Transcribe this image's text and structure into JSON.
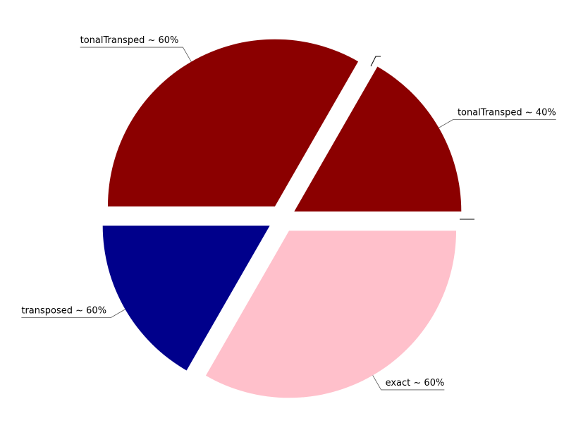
{
  "chart_data": {
    "type": "pie",
    "title": "",
    "slices": [
      {
        "label": "tonalTransped ~ 40%",
        "value": 16.7,
        "color": "#8b0000"
      },
      {
        "label": "tonalTransped ~ 60%",
        "value": 33.3,
        "color": "#8b0000"
      },
      {
        "label": "transposed ~ 60%",
        "value": 16.7,
        "color": "#00008b"
      },
      {
        "label": "exact ~ 60%",
        "value": 33.3,
        "color": "#ffc0cb"
      }
    ]
  }
}
